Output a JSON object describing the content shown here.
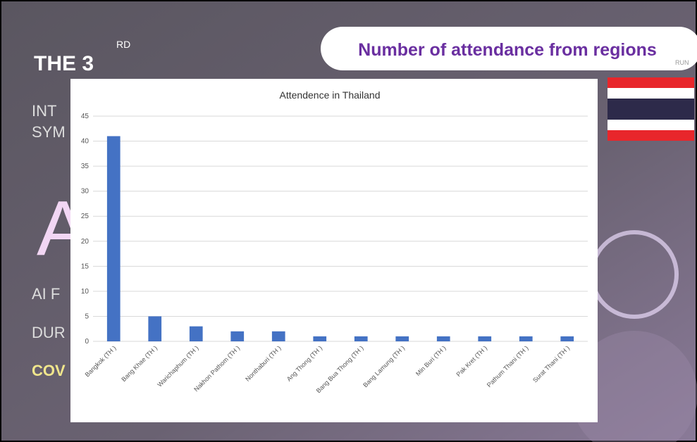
{
  "slide": {
    "heading": "THE 3",
    "heading_sup": "RD",
    "lines": [
      "INT",
      "SYM",
      "AI F",
      "DUR"
    ],
    "big_letter": "A",
    "highlight": "COV",
    "banner": "Number of attendance from regions",
    "corner": "RUN"
  },
  "chart_data": {
    "type": "bar",
    "title": "Attendence in Thailand",
    "categories": [
      "Bangkok (TH )",
      "Bang Khae (TH )",
      "Warichaphum (TH )",
      "Nakhon Pathom (TH )",
      "Nonthaburi (TH )",
      "Ang Thong (TH )",
      "Bang Bua Thong (TH )",
      "Bang Lamung (TH )",
      "Min Buri (TH )",
      "Pak Kret (TH )",
      "Pathum Thani (TH )",
      "Surat Thani (TH )"
    ],
    "values": [
      41,
      5,
      3,
      2,
      2,
      1,
      1,
      1,
      1,
      1,
      1,
      1
    ],
    "color": "#4472c4",
    "ylim": [
      0,
      45
    ],
    "yticks": [
      0,
      5,
      10,
      15,
      20,
      25,
      30,
      35,
      40,
      45
    ],
    "grid": true
  }
}
